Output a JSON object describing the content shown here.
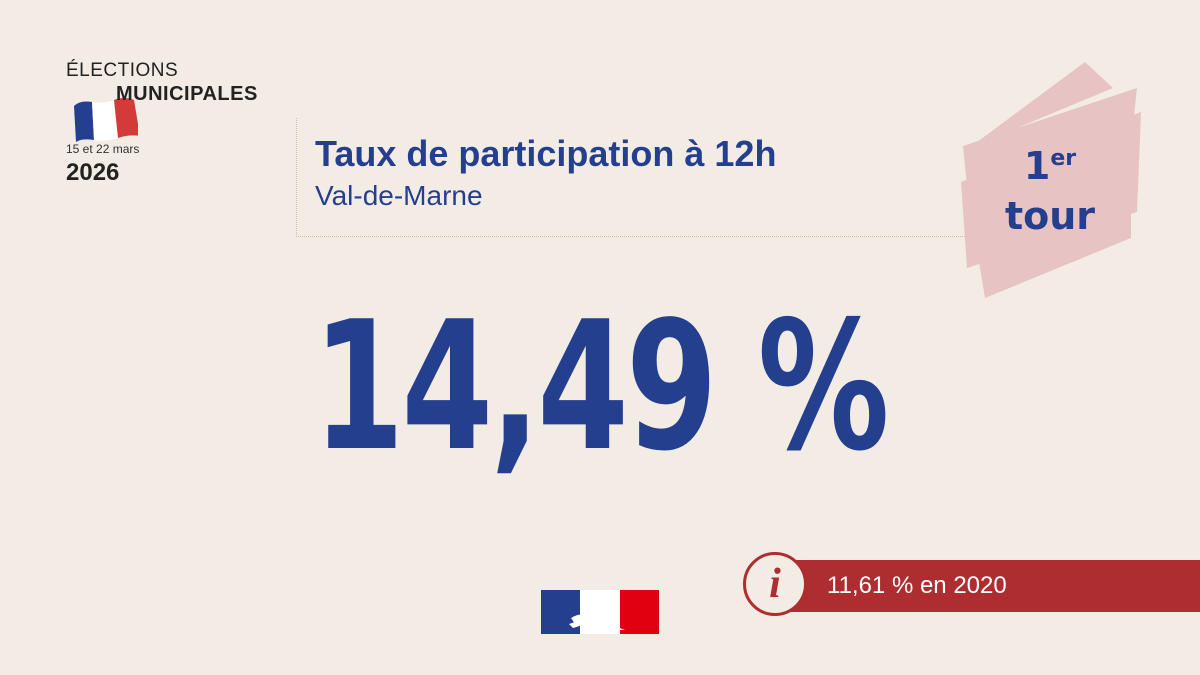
{
  "logo": {
    "line1": "ÉLECTIONS",
    "line2": "MUNICIPALES",
    "dates": "15 et 22 mars",
    "year": "2026"
  },
  "header": {
    "title": "Taux de participation à 12h",
    "subtitle": "Val-de-Marne"
  },
  "tour_badge": {
    "number": "1",
    "superscript": "er",
    "word": "tour"
  },
  "main": {
    "participation_rate": "14,49 %"
  },
  "info": {
    "icon": "info-icon",
    "text": "11,61 % en 2020"
  },
  "colors": {
    "background": "#f2ece4",
    "primary_blue": "#253f8f",
    "accent_red": "#ad2d31",
    "badge_pink": "#e8c3c3"
  }
}
